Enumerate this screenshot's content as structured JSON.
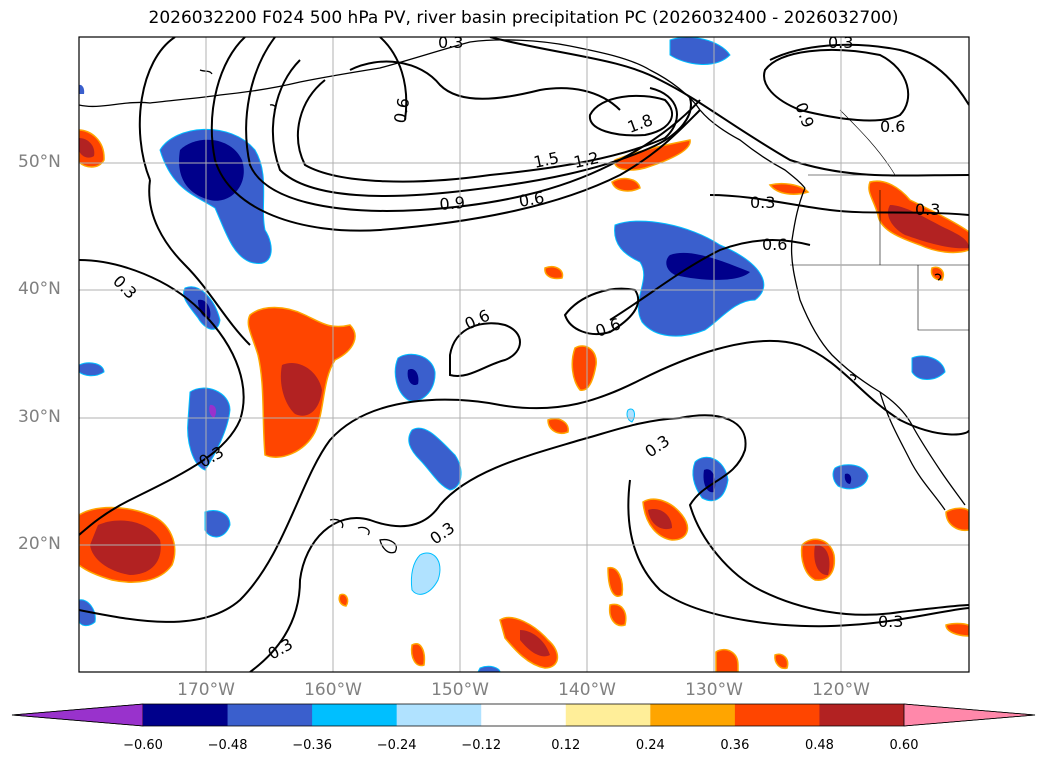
{
  "title": "2026032200 F024 500 hPa PV, river basin precipitation PC (2026032400 - 2026032700)",
  "map": {
    "region": "North-east Pacific",
    "projection": "equirectangular",
    "lon_range": [
      "180°W",
      "110°W"
    ],
    "lat_range": [
      "10°N",
      "60°N"
    ],
    "gridlines": true,
    "lat_labels": [
      "50°N",
      "40°N",
      "30°N",
      "20°N"
    ],
    "lon_labels": [
      "170°W",
      "160°W",
      "150°W",
      "140°W",
      "130°W",
      "120°W"
    ],
    "contour_field": "500 hPa PV",
    "contour_labels": [
      "0.3",
      "0.6",
      "0.9",
      "1.2",
      "1.5",
      "1.8"
    ],
    "coastline_color": "#000000"
  },
  "colorbar": {
    "ticks": [
      "−0.60",
      "−0.48",
      "−0.36",
      "−0.24",
      "−0.12",
      "0.12",
      "0.24",
      "0.36",
      "0.48",
      "0.60"
    ],
    "colors": [
      "#9932cc",
      "#00008b",
      "#3a5fcd",
      "#00bfff",
      "#b0e2ff",
      "#ffffff",
      "#ffee99",
      "#ffa500",
      "#ff4500",
      "#b22222",
      "#ff88aa"
    ]
  }
}
